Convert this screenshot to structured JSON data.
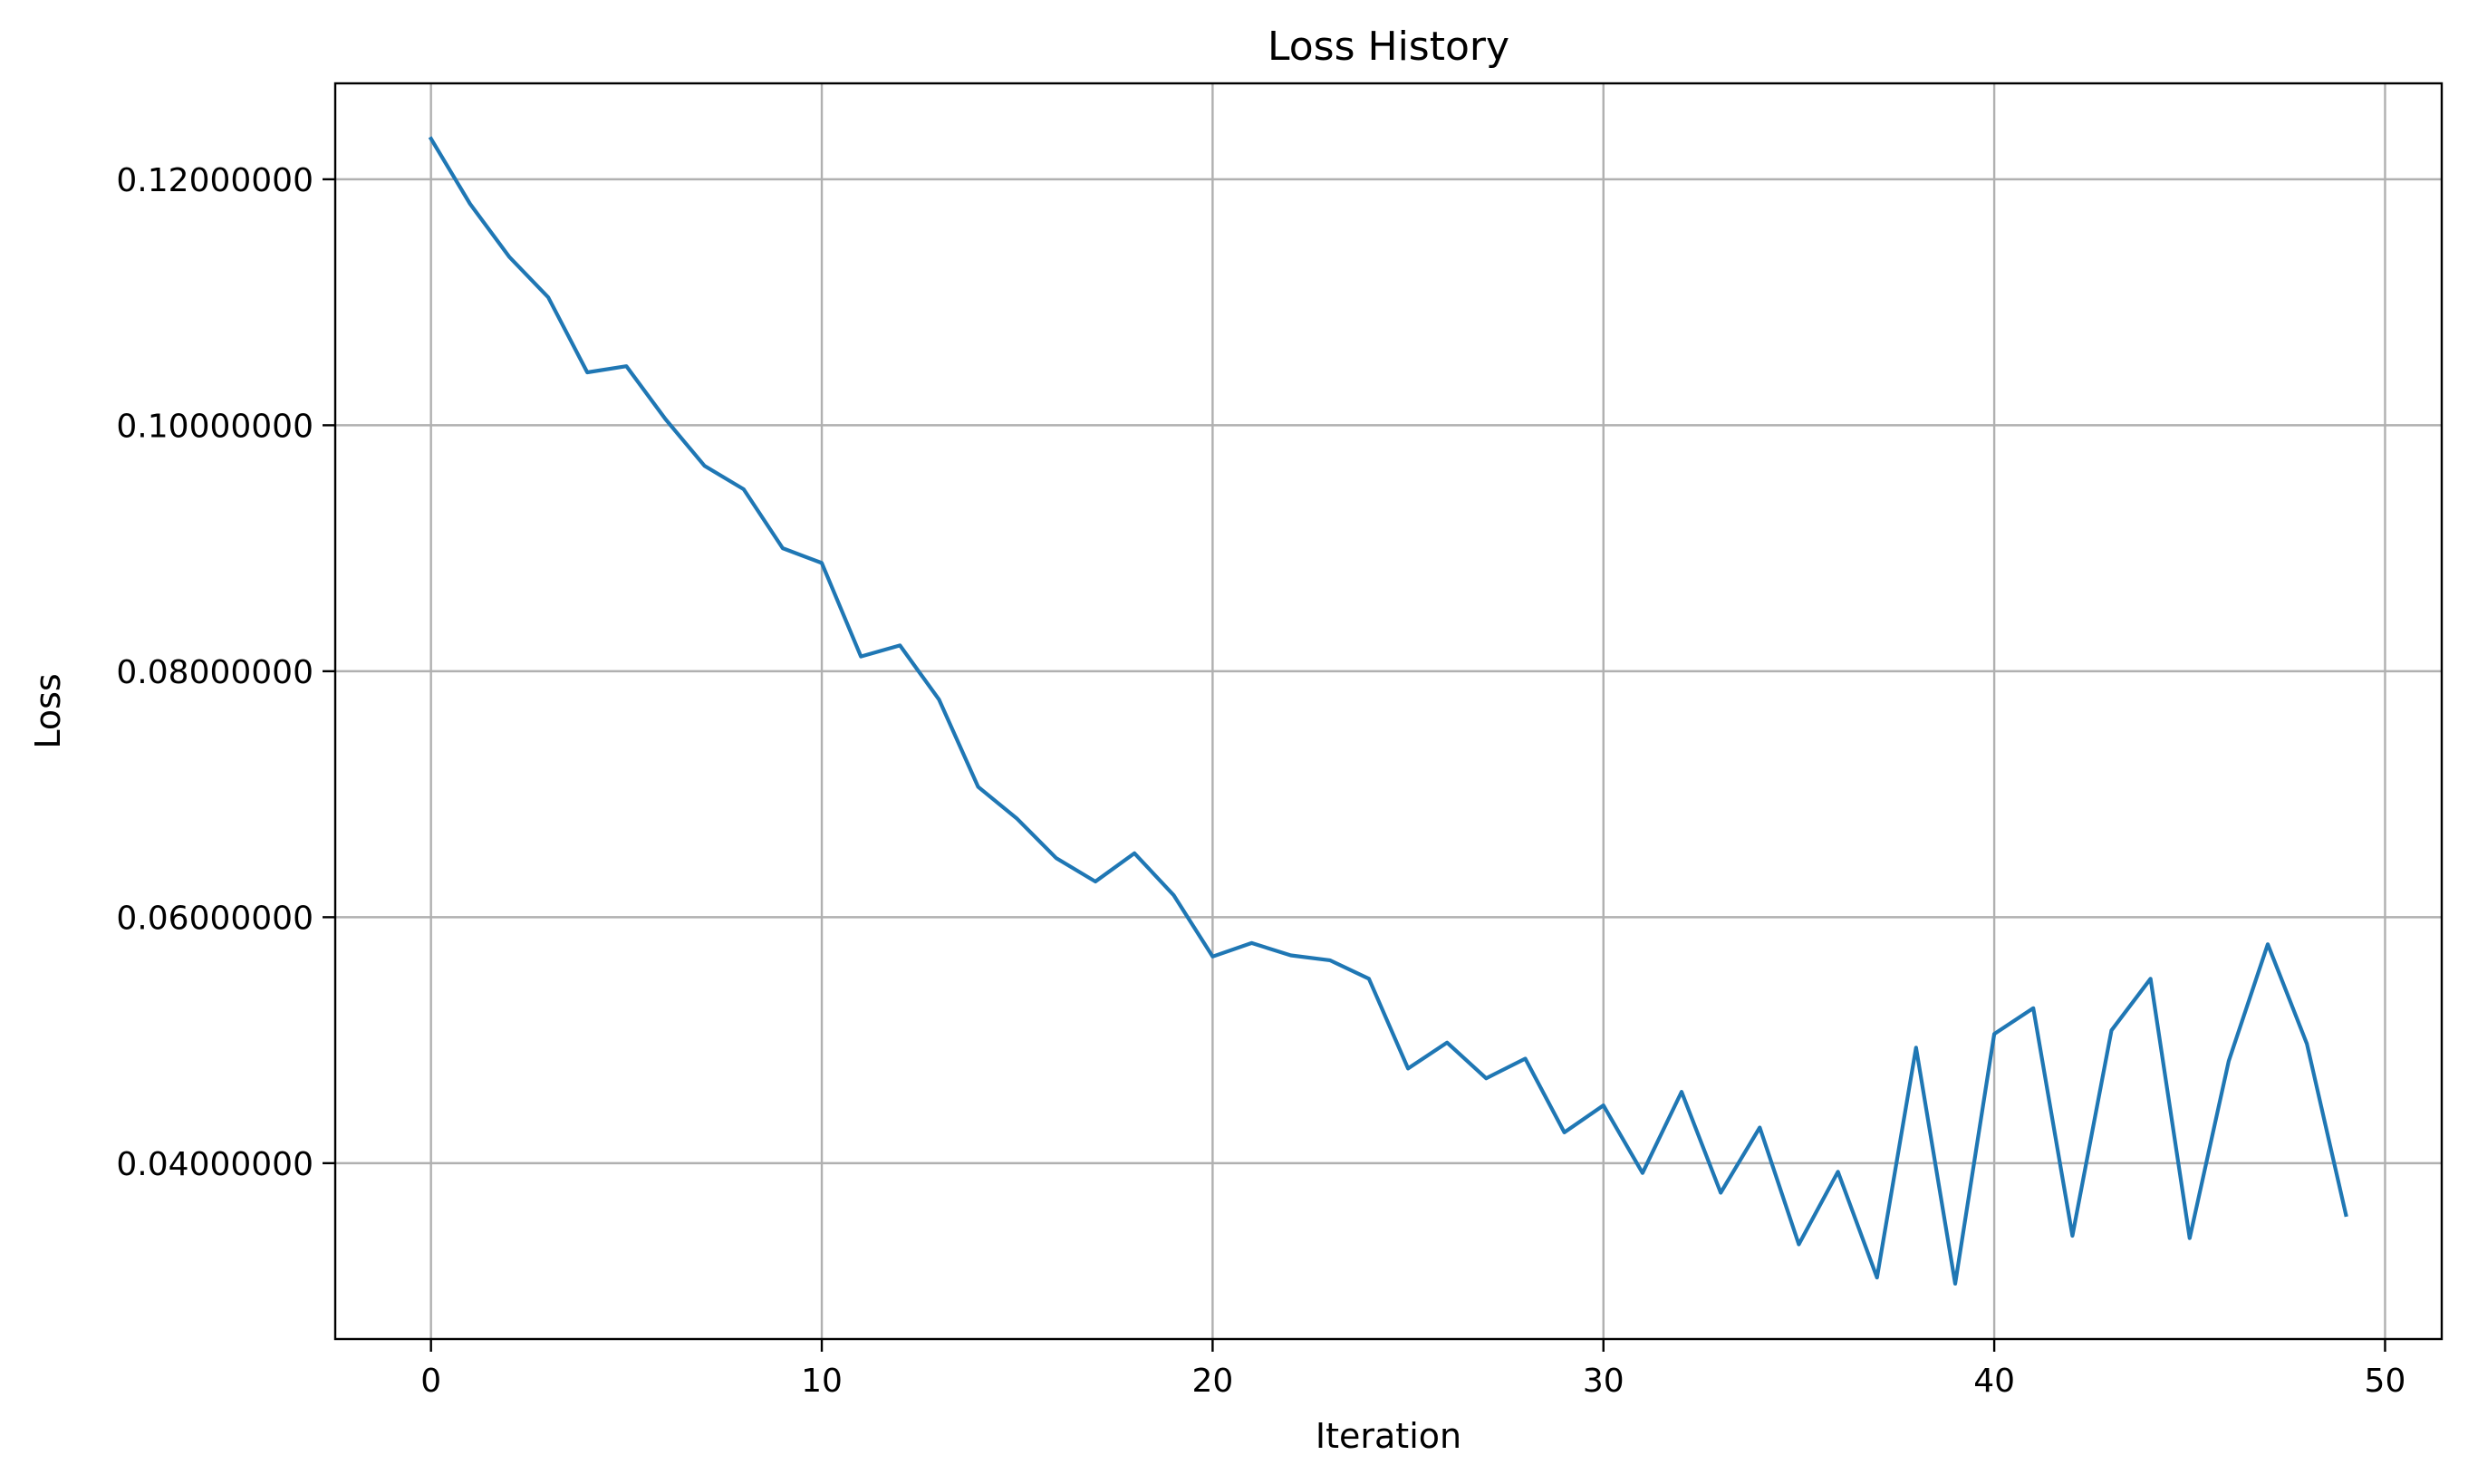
{
  "chart_data": {
    "type": "line",
    "title": "Loss History",
    "xlabel": "Iteration",
    "ylabel": "Loss",
    "xlim": [
      -2.45,
      51.45
    ],
    "ylim": [
      0.0257,
      0.1278
    ],
    "xticks": [
      0,
      10,
      20,
      30,
      40,
      50
    ],
    "xtick_labels": [
      "0",
      "10",
      "20",
      "30",
      "40",
      "50"
    ],
    "yticks": [
      0.04,
      0.06,
      0.08,
      0.1,
      0.12
    ],
    "ytick_labels": [
      "0.04000000",
      "0.06000000",
      "0.08000000",
      "0.10000000",
      "0.12000000"
    ],
    "grid": true,
    "series": [
      {
        "color": "#1f77b4",
        "x": [
          0,
          1,
          2,
          3,
          4,
          5,
          6,
          7,
          8,
          9,
          10,
          11,
          12,
          13,
          14,
          15,
          16,
          17,
          18,
          19,
          20,
          21,
          22,
          23,
          24,
          25,
          26,
          27,
          28,
          29,
          30,
          31,
          32,
          33,
          34,
          35,
          36,
          37,
          38,
          39,
          40,
          41,
          42,
          43,
          44,
          45,
          46,
          47,
          48,
          49
        ],
        "y": [
          0.1233,
          0.118,
          0.1137,
          0.1104,
          0.1043,
          0.1048,
          0.1005,
          0.0967,
          0.0948,
          0.09,
          0.0888,
          0.0812,
          0.0821,
          0.0777,
          0.0706,
          0.068,
          0.0648,
          0.0629,
          0.0652,
          0.0618,
          0.0568,
          0.0579,
          0.0569,
          0.0565,
          0.055,
          0.0477,
          0.0498,
          0.0469,
          0.0485,
          0.0425,
          0.0447,
          0.0392,
          0.0458,
          0.0376,
          0.0429,
          0.0334,
          0.0393,
          0.0307,
          0.0494,
          0.0302,
          0.0505,
          0.0526,
          0.0341,
          0.0508,
          0.055,
          0.0339,
          0.0483,
          0.0578,
          0.0497,
          0.0358
        ]
      }
    ]
  }
}
